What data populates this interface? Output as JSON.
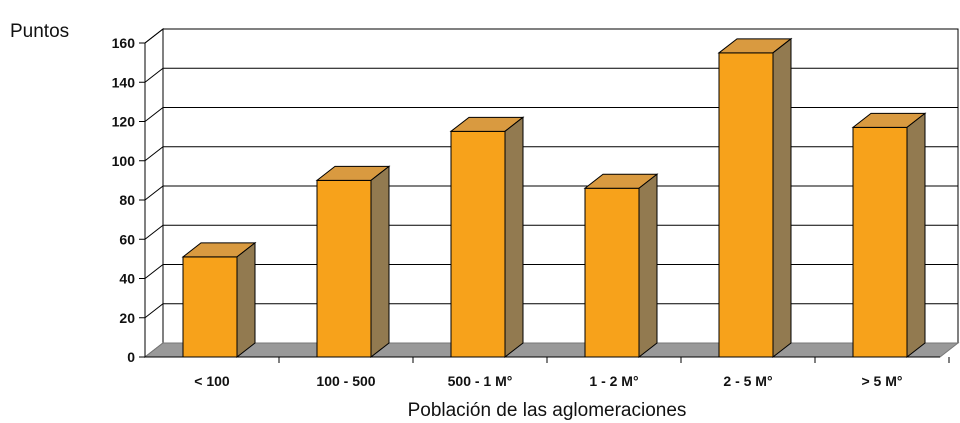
{
  "chart_data": {
    "type": "bar",
    "style": "3d-column",
    "title": "",
    "ylabel": "Puntos",
    "xlabel": "Población de las aglomeraciones",
    "ylim": [
      0,
      160
    ],
    "yticks": [
      "0",
      "20",
      "40",
      "60",
      "80",
      "100",
      "120",
      "140",
      "160"
    ],
    "grid": true,
    "categories": [
      "< 100",
      "100 - 500",
      "500 - 1 M°",
      "1 - 2 M°",
      "2 - 5 M°",
      "> 5 M°"
    ],
    "values": [
      51,
      90,
      115,
      86,
      155,
      117
    ],
    "colors": {
      "bar_front": "#F7A21B",
      "bar_top": "#D99A40",
      "bar_side": "#927A50",
      "floor": "#999999",
      "grid": "#000000"
    }
  }
}
